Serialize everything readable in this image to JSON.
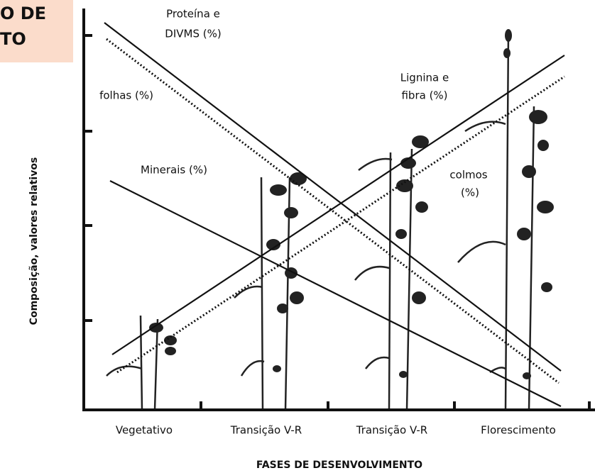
{
  "header": {
    "lines": [
      "O DE",
      "TO"
    ]
  },
  "diagram": {
    "y_axis_title": "Composição, valores relativos",
    "x_axis_title": "FASES DE DESENVOLVIMENTO",
    "categories": [
      "Vegetativo",
      "Transição V-R",
      "Transição V-R",
      "Florescimento"
    ],
    "labels": {
      "proteina": [
        "Proteína e",
        "DIVMS (%)"
      ],
      "folhas": "folhas (%)",
      "minerais": "Minerais (%)",
      "lignina": [
        "Lignina e",
        "fibra (%)"
      ],
      "colmos": [
        "colmos",
        "(%)"
      ]
    }
  }
}
